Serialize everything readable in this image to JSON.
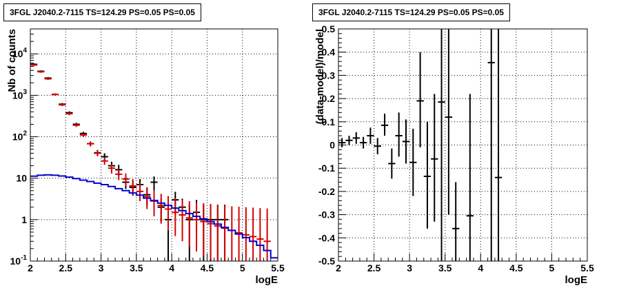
{
  "chart_data": [
    {
      "type": "line",
      "title": "3FGL J2040.2-7115 TS=124.29 PS=0.05 PS=0.05",
      "xlabel": "logE",
      "ylabel": "Nb of counts",
      "xlim": [
        2,
        5.5
      ],
      "ylim": [
        0.1,
        40000
      ],
      "yscale": "log",
      "grid": true,
      "xticks": [
        "2",
        "2.5",
        "3",
        "3.5",
        "4",
        "4.5",
        "5",
        "5.5"
      ],
      "yticks": [
        {
          "value": 0.1,
          "label": "10",
          "exp": "-1"
        },
        {
          "value": 1,
          "label": "1",
          "exp": ""
        },
        {
          "value": 10,
          "label": "10",
          "exp": ""
        },
        {
          "value": 100,
          "label": "10",
          "exp": "2"
        },
        {
          "value": 1000,
          "label": "10",
          "exp": "3"
        },
        {
          "value": 10000,
          "label": "10",
          "exp": "4"
        }
      ],
      "series": [
        {
          "color": "#000000",
          "x": [
            2.05,
            2.15,
            2.25,
            2.35,
            2.45,
            2.55,
            2.65,
            2.75,
            2.85,
            2.95,
            3.05,
            3.15,
            3.25,
            3.35,
            3.45,
            3.55,
            3.65,
            3.75,
            3.85,
            3.95,
            4.05,
            4.15,
            4.25,
            4.35,
            4.45,
            4.55,
            4.65,
            4.75
          ],
          "y": [
            5600,
            3800,
            2600,
            1050,
            610,
            380,
            200,
            120,
            68,
            41,
            33,
            20,
            16,
            8,
            6,
            7,
            4,
            8,
            2,
            1,
            3,
            2,
            1,
            1.5,
            1,
            1,
            1,
            1
          ],
          "ylow": [
            5300,
            3600,
            2450,
            990,
            570,
            350,
            182,
            108,
            59,
            34,
            26,
            15,
            11.5,
            5.5,
            3.8,
            4.5,
            2.2,
            5,
            0.9,
            0.1,
            1.3,
            0.9,
            0.1,
            0.5,
            0.1,
            0.1,
            0.1,
            0.1
          ],
          "yhigh": [
            5900,
            4000,
            2750,
            1110,
            650,
            410,
            218,
            132,
            77,
            48,
            40,
            25,
            21,
            11,
            8.5,
            9.5,
            6,
            11,
            3.2,
            2.3,
            4.7,
            3.2,
            2.3,
            3,
            2.3,
            2.3,
            2.3,
            2.3
          ]
        },
        {
          "color": "#d40000",
          "x": [
            2.05,
            2.15,
            2.25,
            2.35,
            2.45,
            2.55,
            2.65,
            2.75,
            2.85,
            2.95,
            3.05,
            3.15,
            3.25,
            3.35,
            3.45,
            3.55,
            3.65,
            3.75,
            3.85,
            3.95,
            4.05,
            4.15,
            4.25,
            4.35,
            4.45,
            4.55,
            4.65,
            4.75,
            4.85,
            4.95,
            5.05,
            5.15,
            5.25,
            5.35
          ],
          "y": [
            5400,
            3700,
            2500,
            1050,
            590,
            360,
            190,
            110,
            68,
            40,
            26,
            17.5,
            12.5,
            9.5,
            6.5,
            4.8,
            3.6,
            2.8,
            2.2,
            1.8,
            1.5,
            1.3,
            1.1,
            1.0,
            0.9,
            0.8,
            0.7,
            0.62,
            0.55,
            0.48,
            0.43,
            0.39,
            0.34,
            0.3
          ],
          "ylow": [
            5100,
            3500,
            2350,
            990,
            550,
            330,
            172,
            99,
            59,
            34,
            21,
            13,
            9,
            6.5,
            4,
            2.8,
            1.8,
            1.2,
            0.8,
            0.55,
            0.4,
            0.3,
            0.22,
            0.17,
            0.13,
            0.11,
            0.1,
            0.1,
            0.1,
            0.1,
            0.1,
            0.1,
            0.1,
            0.1
          ],
          "yhigh": [
            5700,
            3900,
            2650,
            1110,
            630,
            390,
            208,
            121,
            77,
            46,
            32,
            22,
            16.5,
            13,
            9.5,
            7.5,
            6,
            5,
            4.2,
            3.7,
            3.3,
            3,
            2.8,
            2.6,
            2.5,
            2.4,
            2.3,
            2.2,
            2.1,
            2.05,
            2,
            1.95,
            1.9,
            1.85
          ]
        },
        {
          "color": "#0000cc",
          "style": "step",
          "x": [
            2.05,
            2.15,
            2.25,
            2.35,
            2.45,
            2.55,
            2.65,
            2.75,
            2.85,
            2.95,
            3.05,
            3.15,
            3.25,
            3.35,
            3.45,
            3.55,
            3.65,
            3.75,
            3.85,
            3.95,
            4.05,
            4.15,
            4.25,
            4.35,
            4.45,
            4.55,
            4.65,
            4.75,
            4.85,
            4.95,
            5.05,
            5.15,
            5.25,
            5.35,
            5.45
          ],
          "y": [
            11.2,
            11.8,
            12.0,
            11.8,
            11.3,
            10.6,
            9.8,
            9.0,
            8.3,
            7.6,
            7.0,
            6.3,
            5.6,
            5.0,
            4.4,
            3.9,
            3.3,
            2.9,
            2.5,
            2.2,
            1.9,
            1.65,
            1.4,
            1.2,
            1.05,
            0.9,
            0.78,
            0.65,
            0.55,
            0.45,
            0.37,
            0.3,
            0.24,
            0.18,
            0.12
          ]
        }
      ]
    },
    {
      "type": "scatter",
      "title": "3FGL J2040.2-7115 TS=124.29 PS=0.05 PS=0.05",
      "xlabel": "logE",
      "ylabel": "(data-model)/model",
      "xlim": [
        2,
        5.5
      ],
      "ylim": [
        -0.5,
        0.5
      ],
      "grid": true,
      "xticks": [
        "2",
        "2.5",
        "3",
        "3.5",
        "4",
        "4.5",
        "5",
        "5.5"
      ],
      "yticks": [
        "-0.5",
        "-0.4",
        "-0.3",
        "-0.2",
        "-0.1",
        "0",
        "0.1",
        "0.2",
        "0.3",
        "0.4",
        "0.5"
      ],
      "series": [
        {
          "color": "#000000",
          "x": [
            2.05,
            2.15,
            2.25,
            2.35,
            2.45,
            2.55,
            2.65,
            2.75,
            2.85,
            2.95,
            3.05,
            3.15,
            3.25,
            3.35,
            3.45,
            3.55,
            3.65,
            3.85,
            4.15,
            4.25
          ],
          "y": [
            0.01,
            0.02,
            0.03,
            0.01,
            0.04,
            -0.005,
            0.085,
            -0.08,
            0.04,
            0.015,
            -0.075,
            0.19,
            -0.135,
            -0.06,
            0.185,
            0.12,
            -0.36,
            -0.305,
            0.355,
            -0.14
          ],
          "ylow": [
            -0.01,
            0.0,
            0.005,
            -0.015,
            0.005,
            -0.04,
            0.04,
            -0.145,
            -0.05,
            -0.08,
            -0.22,
            -0.01,
            -0.36,
            -0.33,
            -0.5,
            -0.3,
            -0.5,
            -0.5,
            -0.5,
            -0.5
          ],
          "yhigh": [
            0.03,
            0.04,
            0.055,
            0.035,
            0.075,
            0.03,
            0.135,
            -0.015,
            0.14,
            0.11,
            0.07,
            0.4,
            0.1,
            0.22,
            0.5,
            0.5,
            -0.16,
            0.22,
            0.5,
            0.5
          ]
        }
      ]
    }
  ]
}
